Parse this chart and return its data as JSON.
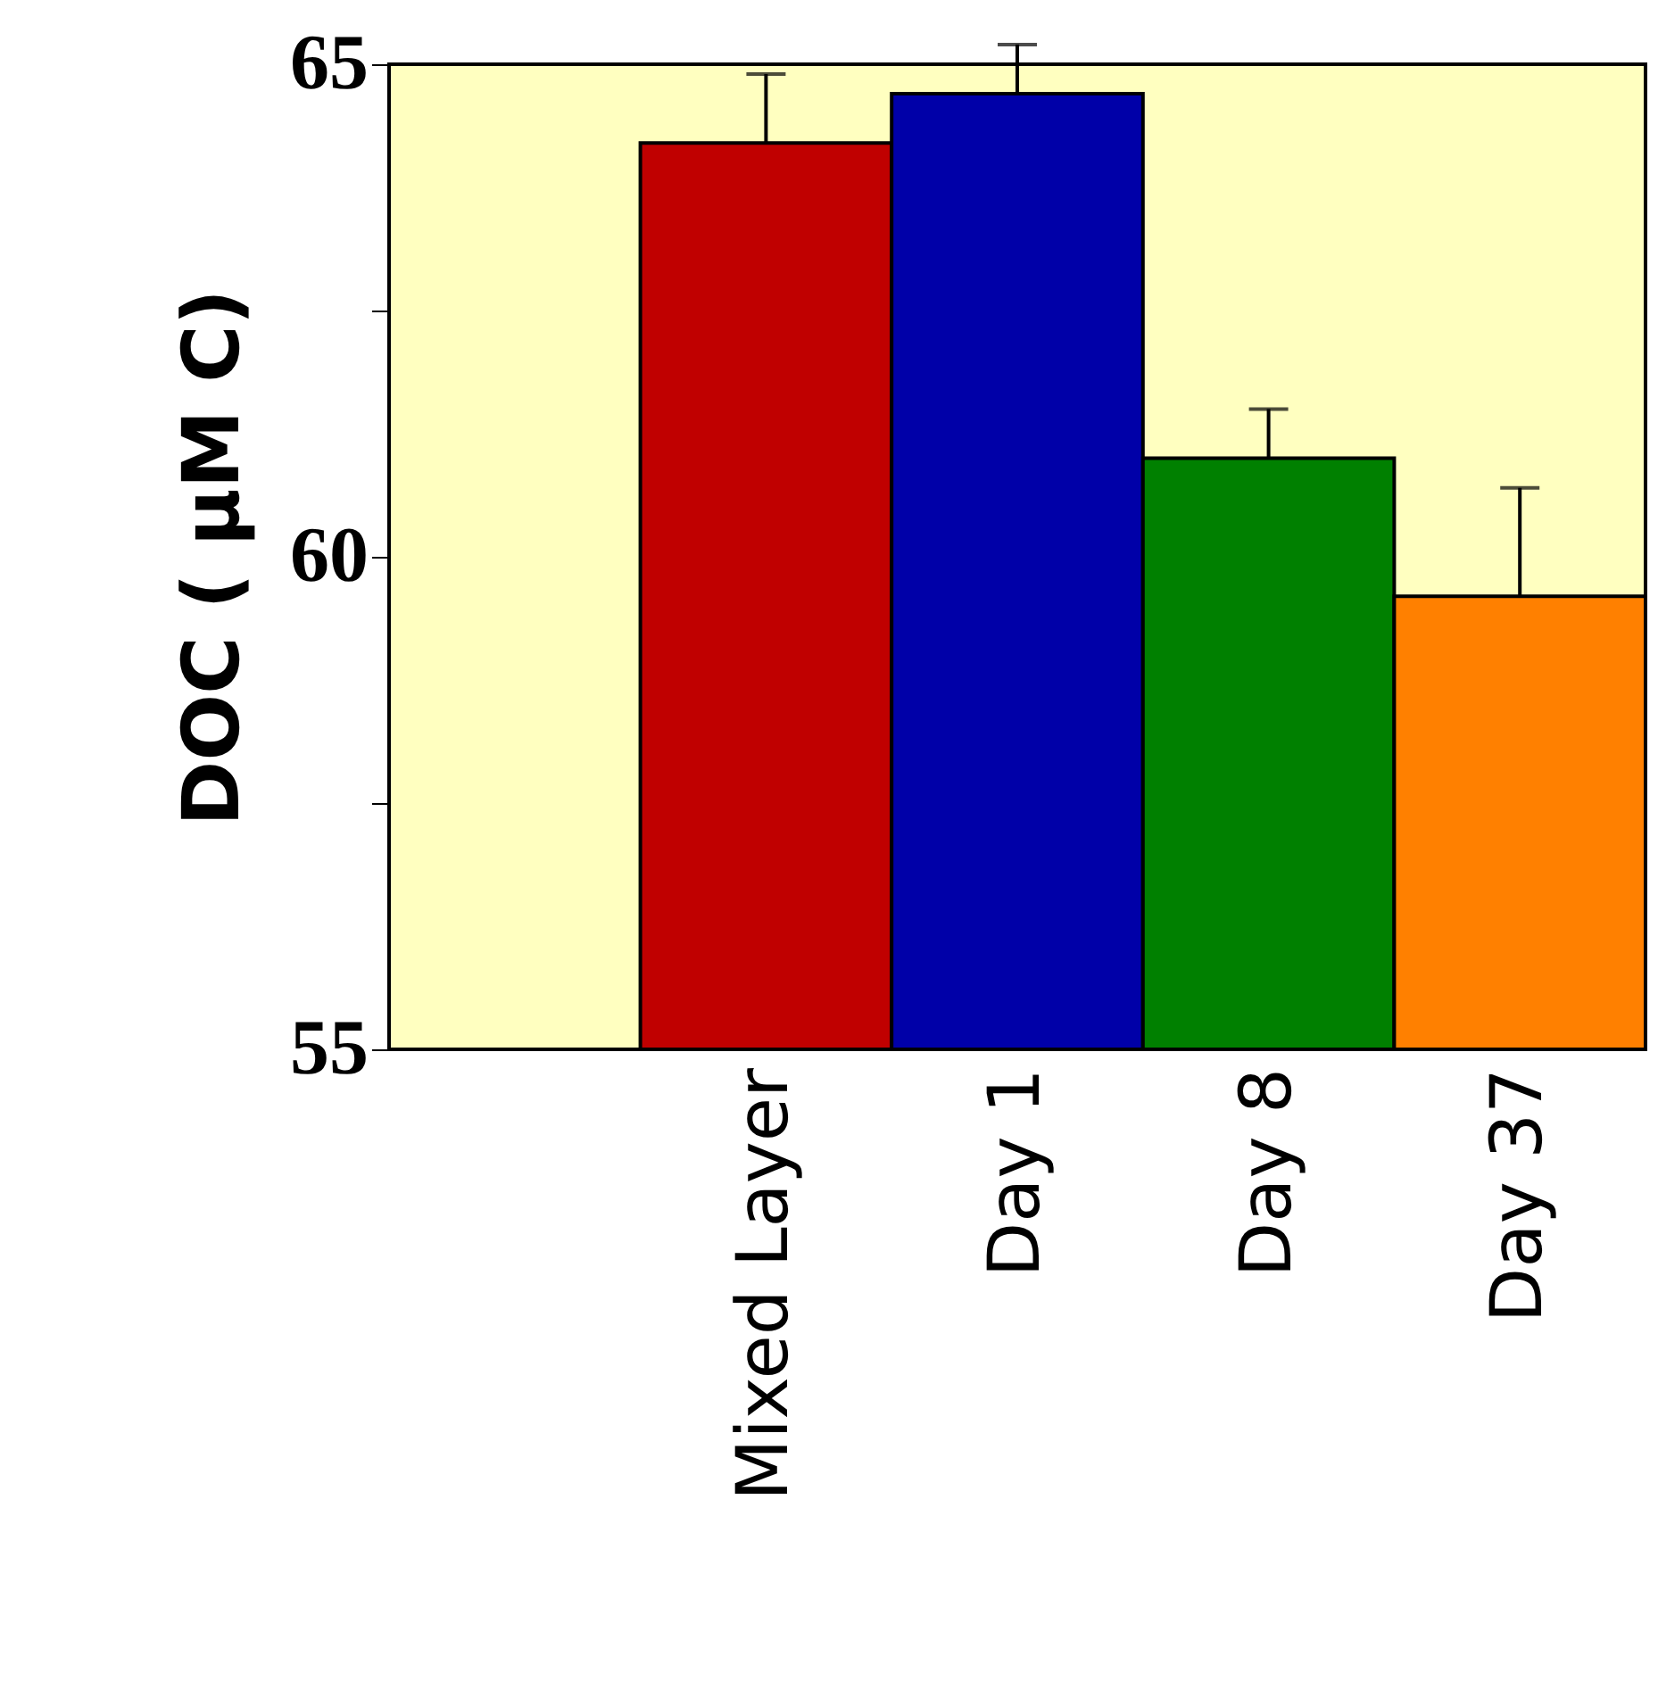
{
  "chart_data": {
    "type": "bar",
    "ylabel": "DOC ( μM C)",
    "categories": [
      null,
      "Mixed Layer",
      "Day 1",
      "Day 8",
      "Day 37"
    ],
    "values": [
      null,
      64.2,
      64.7,
      61.0,
      59.6
    ],
    "errors": [
      null,
      0.7,
      0.5,
      0.5,
      1.1
    ],
    "colors": [
      "#ffffff",
      "#c00000",
      "#0000a8",
      "#008000",
      "#ff8000"
    ],
    "ylim": [
      55,
      65
    ],
    "yticks": [
      55,
      {
        "value": 57.5,
        "label": null
      },
      60,
      {
        "value": 62.5,
        "label": null
      },
      65
    ],
    "grid": false
  }
}
